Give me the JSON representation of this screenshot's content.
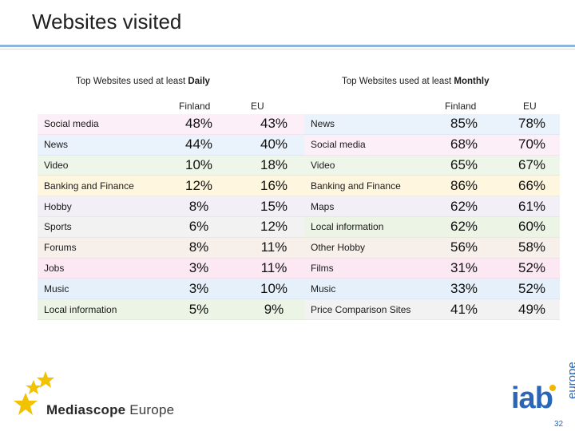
{
  "page": {
    "title": "Websites visited",
    "page_number": "32"
  },
  "daily": {
    "caption_prefix": "Top Websites used at least ",
    "caption_bold": "Daily",
    "col1": "Finland",
    "col2": "EU",
    "rows": [
      {
        "label": "Social media",
        "finland": "48%",
        "eu": "43%",
        "tint": "#fdeff7"
      },
      {
        "label": "News",
        "finland": "44%",
        "eu": "40%",
        "tint": "#eaf2fb"
      },
      {
        "label": "Video",
        "finland": "10%",
        "eu": "18%",
        "tint": "#eef6ea"
      },
      {
        "label": "Banking and Finance",
        "finland": "12%",
        "eu": "16%",
        "tint": "#fff6df"
      },
      {
        "label": "Hobby",
        "finland": "8%",
        "eu": "15%",
        "tint": "#f3eff7"
      },
      {
        "label": "Sports",
        "finland": "6%",
        "eu": "12%",
        "tint": "#f2f2f2"
      },
      {
        "label": "Forums",
        "finland": "8%",
        "eu": "11%",
        "tint": "#f6efea"
      },
      {
        "label": "Jobs",
        "finland": "3%",
        "eu": "11%",
        "tint": "#fce8f2"
      },
      {
        "label": "Music",
        "finland": "3%",
        "eu": "10%",
        "tint": "#e6f0fb"
      },
      {
        "label": "Local information",
        "finland": "5%",
        "eu": "9%",
        "tint": "#ecf5e5"
      }
    ]
  },
  "monthly": {
    "caption_prefix": "Top Websites used at least ",
    "caption_bold": "Monthly",
    "col1": "Finland",
    "col2": "EU",
    "rows": [
      {
        "label": "News",
        "finland": "85%",
        "eu": "78%",
        "tint": "#eaf2fb"
      },
      {
        "label": "Social media",
        "finland": "68%",
        "eu": "70%",
        "tint": "#fdeff7"
      },
      {
        "label": "Video",
        "finland": "65%",
        "eu": "67%",
        "tint": "#eef6ea"
      },
      {
        "label": "Banking and Finance",
        "finland": "86%",
        "eu": "66%",
        "tint": "#fff6df"
      },
      {
        "label": "Maps",
        "finland": "62%",
        "eu": "61%",
        "tint": "#f3eff7"
      },
      {
        "label": "Local information",
        "finland": "62%",
        "eu": "60%",
        "tint": "#ecf5e5"
      },
      {
        "label": "Other Hobby",
        "finland": "56%",
        "eu": "58%",
        "tint": "#f6efea"
      },
      {
        "label": "Films",
        "finland": "31%",
        "eu": "52%",
        "tint": "#fce8f2"
      },
      {
        "label": "Music",
        "finland": "33%",
        "eu": "52%",
        "tint": "#e6f0fb"
      },
      {
        "label": "Price Comparison Sites",
        "finland": "41%",
        "eu": "49%",
        "tint": "#f2f2f2"
      }
    ]
  },
  "footer": {
    "brand_bold": "Mediascope",
    "brand_rest": " Europe",
    "iab_text": "iab",
    "iab_sub": "europe"
  }
}
